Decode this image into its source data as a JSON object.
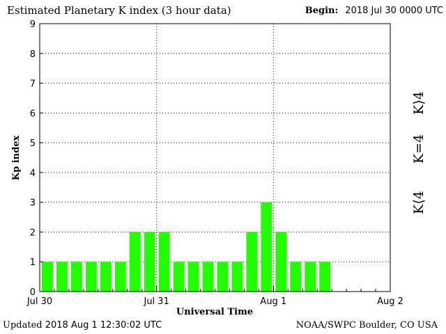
{
  "header": {
    "title": "Estimated Planetary K index (3 hour data)",
    "begin_label": "Begin:",
    "begin_value": "2018 Jul 30 0000 UTC"
  },
  "footer": {
    "updated_label": "Updated",
    "updated_value": "2018 Aug  1 12:30:02 UTC",
    "credit": "NOAA/SWPC Boulder, CO USA"
  },
  "colors": {
    "quiet": "#22ff00",
    "moderate": "#ffcc00",
    "storm": "#ff2a00"
  },
  "legend": [
    {
      "label": "K⟨4",
      "color": "#22ff00"
    },
    {
      "label": "K=4",
      "color": "#ffcc00"
    },
    {
      "label": "K⟩4",
      "color": "#ff2a00"
    }
  ],
  "chart_data": {
    "type": "bar",
    "title": "Estimated Planetary K index (3 hour data)",
    "xlabel": "Universal Time",
    "ylabel": "Kp index",
    "ylim": [
      0,
      9
    ],
    "yticks": [
      0,
      1,
      2,
      3,
      4,
      5,
      6,
      7,
      8,
      9
    ],
    "xticks": [
      "Jul 30",
      "Jul 31",
      "Aug 1",
      "Aug 2"
    ],
    "bars_per_day": 8,
    "grid": true,
    "values": [
      1,
      1,
      1,
      1,
      1,
      1,
      2,
      2,
      2,
      1,
      1,
      1,
      1,
      1,
      2,
      3,
      2,
      1,
      1,
      1
    ]
  }
}
